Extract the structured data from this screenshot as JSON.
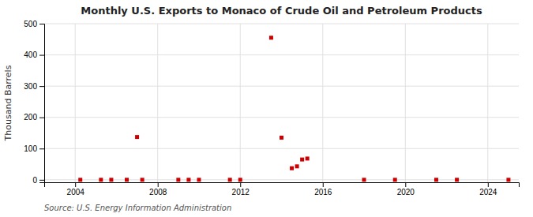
{
  "chart_data": {
    "type": "scatter",
    "title": "Monthly U.S. Exports to Monaco of Crude Oil and Petroleum Products",
    "ylabel": "Thousand Barrels",
    "source": "Source: U.S. Energy Information Administration",
    "x": [
      2004.25,
      2005.25,
      2005.75,
      2006.5,
      2007.0,
      2007.25,
      2009.0,
      2009.5,
      2010.0,
      2011.5,
      2012.0,
      2013.5,
      2014.0,
      2014.5,
      2014.75,
      2015.0,
      2015.25,
      2018.0,
      2019.5,
      2021.5,
      2022.5,
      2025.0
    ],
    "values": [
      0,
      0,
      0,
      0,
      137,
      0,
      0,
      0,
      0,
      0,
      0,
      455,
      135,
      37,
      43,
      65,
      68,
      0,
      0,
      0,
      0,
      0
    ],
    "color": "#cc0000",
    "marker": "square",
    "xlim": [
      2002.5,
      2025.5
    ],
    "ylim": [
      -8,
      500
    ],
    "xticks": [
      2004,
      2008,
      2012,
      2016,
      2020,
      2024
    ],
    "yticks": [
      0,
      100,
      200,
      300,
      400,
      500
    ],
    "grid": true
  }
}
